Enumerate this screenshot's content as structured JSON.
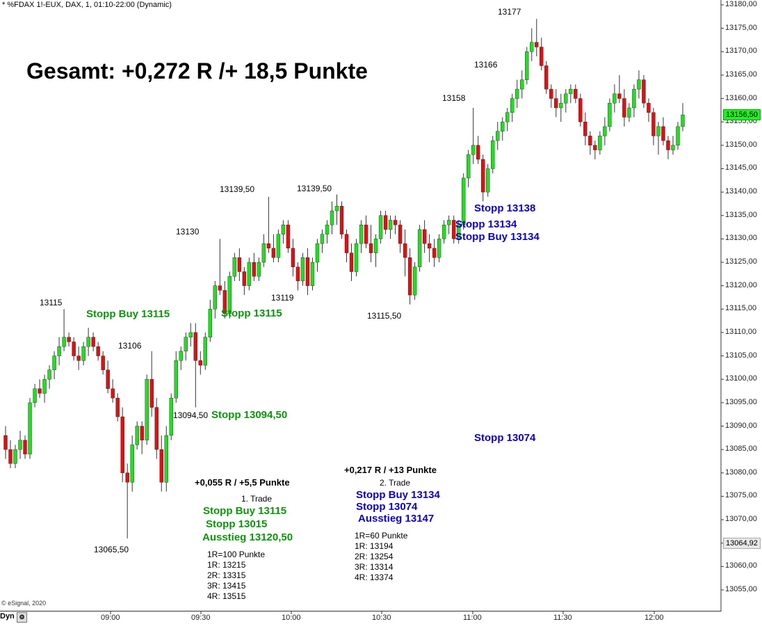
{
  "header": {
    "symbol_line": "* %FDAX 1!-EUX, DAX, 1, 01:10-22:00 (Dynamic)"
  },
  "footer": {
    "copyright": "© eSignal, 2020",
    "dyn_label": "Dyn"
  },
  "title": "Gesamt: +0,272 R /+ 18,5 Punkte",
  "colors": {
    "up": "#22dd22",
    "down": "#dd1111",
    "wick": "#333333",
    "green_text": "#0b960b",
    "blue_text": "#0b00cc",
    "current_price_bg": "#22ee22"
  },
  "chart_data": {
    "type": "candlestick",
    "x_ticks": [
      "09:00",
      "09:30",
      "10:00",
      "10:30",
      "11:00",
      "11:30",
      "12:00"
    ],
    "y_ticks": [
      "13180,00",
      "13175,00",
      "13170,00",
      "13165,00",
      "13160,00",
      "13155,00",
      "13150,00",
      "13145,00",
      "13140,00",
      "13135,00",
      "13130,00",
      "13125,00",
      "13120,00",
      "13115,00",
      "13110,00",
      "13105,00",
      "13100,00",
      "13095,00",
      "13090,00",
      "13085,00",
      "13080,00",
      "13075,00",
      "13070,00",
      "13065,00",
      "13060,00",
      "13055,00"
    ],
    "ylim": [
      13050,
      13181
    ],
    "current_price": "13156,50",
    "marker_price": "13064,92",
    "candles": [
      [
        13088,
        13090,
        13083,
        13085
      ],
      [
        13085,
        13087,
        13081,
        13082
      ],
      [
        13082,
        13086,
        13081,
        13085
      ],
      [
        13085,
        13089,
        13083,
        13087
      ],
      [
        13087,
        13088,
        13083,
        13084
      ],
      [
        13084,
        13096,
        13083,
        13095
      ],
      [
        13095,
        13099,
        13094,
        13098
      ],
      [
        13098,
        13100,
        13096,
        13097
      ],
      [
        13097,
        13101,
        13095,
        13100
      ],
      [
        13100,
        13103,
        13098,
        13102
      ],
      [
        13102,
        13106,
        13100,
        13105
      ],
      [
        13105,
        13109,
        13103,
        13107
      ],
      [
        13107,
        13115,
        13106,
        13109
      ],
      [
        13109,
        13110,
        13107,
        13108
      ],
      [
        13108,
        13109,
        13104,
        13105
      ],
      [
        13105,
        13107,
        13102,
        13104
      ],
      [
        13104,
        13108,
        13103,
        13107
      ],
      [
        13107,
        13111,
        13105,
        13109
      ],
      [
        13109,
        13110,
        13106,
        13107
      ],
      [
        13107,
        13108,
        13104,
        13105
      ],
      [
        13105,
        13106,
        13101,
        13102
      ],
      [
        13102,
        13104,
        13097,
        13098
      ],
      [
        13098,
        13100,
        13095,
        13096
      ],
      [
        13096,
        13097,
        13091,
        13092
      ],
      [
        13092,
        13094,
        13078,
        13080
      ],
      [
        13080,
        13082,
        13066,
        13078
      ],
      [
        13078,
        13088,
        13076,
        13086
      ],
      [
        13086,
        13091,
        13085,
        13090
      ],
      [
        13090,
        13091,
        13084,
        13087
      ],
      [
        13087,
        13101,
        13086,
        13100
      ],
      [
        13100,
        13106,
        13092,
        13094
      ],
      [
        13094,
        13096,
        13083,
        13085
      ],
      [
        13085,
        13088,
        13076,
        13078
      ],
      [
        13078,
        13090,
        13076,
        13088
      ],
      [
        13088,
        13097,
        13087,
        13096
      ],
      [
        13096,
        13106,
        13095,
        13104
      ],
      [
        13104,
        13107,
        13102,
        13106
      ],
      [
        13106,
        13110,
        13104,
        13109
      ],
      [
        13109,
        13112,
        13107,
        13110
      ],
      [
        13110,
        13112,
        13094,
        13104
      ],
      [
        13104,
        13106,
        13101,
        13103
      ],
      [
        13103,
        13110,
        13102,
        13109
      ],
      [
        13109,
        13117,
        13108,
        13115
      ],
      [
        13115,
        13121,
        13113,
        13120
      ],
      [
        13120,
        13130,
        13118,
        13119
      ],
      [
        13119,
        13121,
        13113,
        13114
      ],
      [
        13114,
        13123,
        13113,
        13122
      ],
      [
        13122,
        13127,
        13121,
        13126
      ],
      [
        13126,
        13128,
        13121,
        13123
      ],
      [
        13123,
        13124,
        13118,
        13120
      ],
      [
        13120,
        13126,
        13119,
        13125
      ],
      [
        13125,
        13127,
        13121,
        13122
      ],
      [
        13122,
        13126,
        13121,
        13125
      ],
      [
        13125,
        13131,
        13124,
        13129
      ],
      [
        13129,
        13139,
        13127,
        13128
      ],
      [
        13128,
        13131,
        13125,
        13126
      ],
      [
        13126,
        13132,
        13125,
        13131
      ],
      [
        13131,
        13134,
        13129,
        13133
      ],
      [
        13133,
        13134,
        13127,
        13128
      ],
      [
        13128,
        13130,
        13122,
        13124
      ],
      [
        13124,
        13125,
        13119,
        13121
      ],
      [
        13121,
        13127,
        13120,
        13126
      ],
      [
        13126,
        13128,
        13118,
        13120
      ],
      [
        13120,
        13126,
        13119,
        13125
      ],
      [
        13125,
        13130,
        13123,
        13129
      ],
      [
        13129,
        13132,
        13127,
        13131
      ],
      [
        13131,
        13134,
        13129,
        13133
      ],
      [
        13133,
        13138,
        13131,
        13136
      ],
      [
        13136,
        13139.5,
        13133,
        13137
      ],
      [
        13137,
        13138,
        13130,
        13131
      ],
      [
        13131,
        13132,
        13125,
        13127
      ],
      [
        13127,
        13129,
        13121,
        13123
      ],
      [
        13123,
        13130,
        13122,
        13129
      ],
      [
        13129,
        13134,
        13127,
        13133
      ],
      [
        13133,
        13135,
        13128,
        13129
      ],
      [
        13129,
        13133,
        13125,
        13127
      ],
      [
        13127,
        13131,
        13124,
        13130
      ],
      [
        13130,
        13136,
        13129,
        13135
      ],
      [
        13135,
        13136,
        13131,
        13132
      ],
      [
        13132,
        13135,
        13130,
        13134
      ],
      [
        13134,
        13135,
        13131,
        13133
      ],
      [
        13133,
        13134,
        13127,
        13129
      ],
      [
        13129,
        13132,
        13122,
        13126
      ],
      [
        13126,
        13128,
        13116,
        13118
      ],
      [
        13118,
        13125,
        13117,
        13124
      ],
      [
        13124,
        13133,
        13123,
        13132
      ],
      [
        13132,
        13134,
        13127,
        13129
      ],
      [
        13129,
        13131,
        13125,
        13128
      ],
      [
        13128,
        13130,
        13124,
        13126
      ],
      [
        13126,
        13131,
        13125,
        13130
      ],
      [
        13130,
        13134,
        13129,
        13133
      ],
      [
        13133,
        13135,
        13131,
        13134
      ],
      [
        13134,
        13135,
        13129,
        13130
      ],
      [
        13130,
        13134,
        13129,
        13133
      ],
      [
        13133,
        13144,
        13132,
        13143
      ],
      [
        13143,
        13149,
        13141,
        13148
      ],
      [
        13148,
        13158,
        13146,
        13150
      ],
      [
        13150,
        13152,
        13146,
        13147
      ],
      [
        13147,
        13148,
        13138,
        13140
      ],
      [
        13140,
        13146,
        13139,
        13145
      ],
      [
        13145,
        13152,
        13144,
        13151
      ],
      [
        13151,
        13155,
        13149,
        13153
      ],
      [
        13153,
        13156,
        13151,
        13155
      ],
      [
        13155,
        13158,
        13153,
        13157
      ],
      [
        13157,
        13161,
        13155,
        13160
      ],
      [
        13160,
        13164,
        13158,
        13162
      ],
      [
        13162,
        13166,
        13160,
        13164
      ],
      [
        13164,
        13171,
        13163,
        13170
      ],
      [
        13170,
        13175,
        13168,
        13172
      ],
      [
        13172,
        13177,
        13169,
        13171
      ],
      [
        13171,
        13173,
        13166,
        13167
      ],
      [
        13167,
        13168,
        13161,
        13162
      ],
      [
        13162,
        13163,
        13158,
        13160
      ],
      [
        13160,
        13162,
        13156,
        13158
      ],
      [
        13158,
        13161,
        13155,
        13159
      ],
      [
        13159,
        13162,
        13157,
        13161
      ],
      [
        13161,
        13163,
        13159,
        13162
      ],
      [
        13162,
        13163,
        13159,
        13160
      ],
      [
        13160,
        13161,
        13154,
        13155
      ],
      [
        13155,
        13157,
        13150,
        13152
      ],
      [
        13152,
        13153,
        13148,
        13150
      ],
      [
        13150,
        13151,
        13147,
        13149
      ],
      [
        13149,
        13153,
        13148,
        13152
      ],
      [
        13152,
        13156,
        13150,
        13154
      ],
      [
        13154,
        13160,
        13153,
        13159
      ],
      [
        13159,
        13163,
        13157,
        13161
      ],
      [
        13161,
        13165,
        13159,
        13160
      ],
      [
        13160,
        13162,
        13154,
        13156
      ],
      [
        13156,
        13159,
        13155,
        13158
      ],
      [
        13158,
        13163,
        13156,
        13162
      ],
      [
        13162,
        13166,
        13160,
        13164
      ],
      [
        13164,
        13165,
        13158,
        13159
      ],
      [
        13159,
        13160,
        13155,
        13157
      ],
      [
        13157,
        13158,
        13150,
        13152
      ],
      [
        13152,
        13155,
        13148,
        13154
      ],
      [
        13154,
        13156,
        13150,
        13151
      ],
      [
        13151,
        13152,
        13147,
        13149
      ],
      [
        13149,
        13152,
        13148,
        13150
      ],
      [
        13150,
        13155,
        13149,
        13154
      ],
      [
        13154,
        13159,
        13153,
        13156.5
      ]
    ]
  },
  "annotations": {
    "prices": [
      {
        "text": "13115"
      },
      {
        "text": "13106"
      },
      {
        "text": "13065,50"
      },
      {
        "text": "13094,50"
      },
      {
        "text": "13130"
      },
      {
        "text": "13139,50"
      },
      {
        "text": "13119"
      },
      {
        "text": "13139,50"
      },
      {
        "text": "13115,50"
      },
      {
        "text": "13158"
      },
      {
        "text": "13166"
      },
      {
        "text": "13177"
      }
    ],
    "green": [
      {
        "text": "Stopp Buy 13115"
      },
      {
        "text": "Stopp 13115"
      },
      {
        "text": "Stopp 13094,50"
      }
    ],
    "blue": [
      {
        "text": "Stopp 13138"
      },
      {
        "text": "Stopp 13134"
      },
      {
        "text": "Stopp Buy 13134"
      },
      {
        "text": "Stopp 13074"
      }
    ],
    "trade1": {
      "result": "+0,055 R / +5,5 Punkte",
      "label": "1. Trade",
      "lines": [
        "Stopp Buy 13115",
        "Stopp 13015",
        "Ausstieg 13120,50"
      ],
      "r_lines": [
        "1R=100 Punkte",
        "1R: 13215",
        "2R: 13315",
        "3R: 13415",
        "4R: 13515"
      ]
    },
    "trade2": {
      "result": "+0,217 R / +13 Punkte",
      "label": "2. Trade",
      "lines": [
        "Stopp Buy 13134",
        "Stopp 13074",
        "Ausstieg 13147"
      ],
      "r_lines": [
        "1R=60 Punkte",
        "1R: 13194",
        "2R: 13254",
        "3R: 13314",
        "4R: 13374"
      ]
    }
  }
}
